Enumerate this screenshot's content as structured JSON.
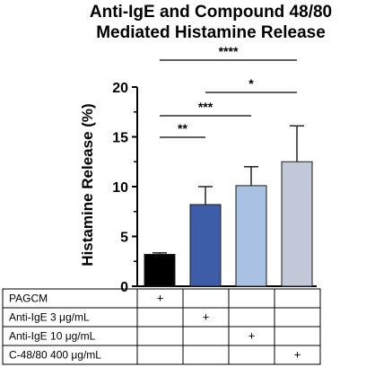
{
  "chart_data": {
    "type": "bar",
    "title_lines": [
      "Anti-IgE and Compound 48/80",
      "Mediated Histamine Release"
    ],
    "xlabel": "",
    "ylabel": "Histamine Release (%)",
    "ylim": [
      0,
      20
    ],
    "yticks": [
      0,
      5,
      10,
      15,
      20
    ],
    "grid": false,
    "categories": [
      "PAGCM",
      "Anti-IgE 3 μg/mL",
      "Anti-IgE 10 μg/mL",
      "C-48/80 400 μg/mL"
    ],
    "values": [
      3.2,
      8.2,
      10.1,
      12.5
    ],
    "errors": [
      0.15,
      1.8,
      1.9,
      3.6
    ],
    "colors": [
      "#000000",
      "#3d5da8",
      "#a9c2e3",
      "#c3c8d8"
    ],
    "significance": [
      {
        "from": 0,
        "to": 1,
        "label": "**"
      },
      {
        "from": 0,
        "to": 2,
        "label": "***"
      },
      {
        "from": 1,
        "to": 3,
        "label": "*"
      },
      {
        "from": 0,
        "to": 3,
        "label": "****"
      }
    ],
    "treatment_table": {
      "rows": [
        {
          "label": "PAGCM",
          "marks": [
            "+",
            "",
            "",
            ""
          ]
        },
        {
          "label": "Anti-IgE 3 μg/mL",
          "marks": [
            "",
            "+",
            "",
            ""
          ]
        },
        {
          "label": "Anti-IgE 10 μg/mL",
          "marks": [
            "",
            "",
            "+",
            ""
          ]
        },
        {
          "label": "C-48/80 400 μg/mL",
          "marks": [
            "",
            "",
            "",
            "+"
          ]
        }
      ]
    }
  }
}
